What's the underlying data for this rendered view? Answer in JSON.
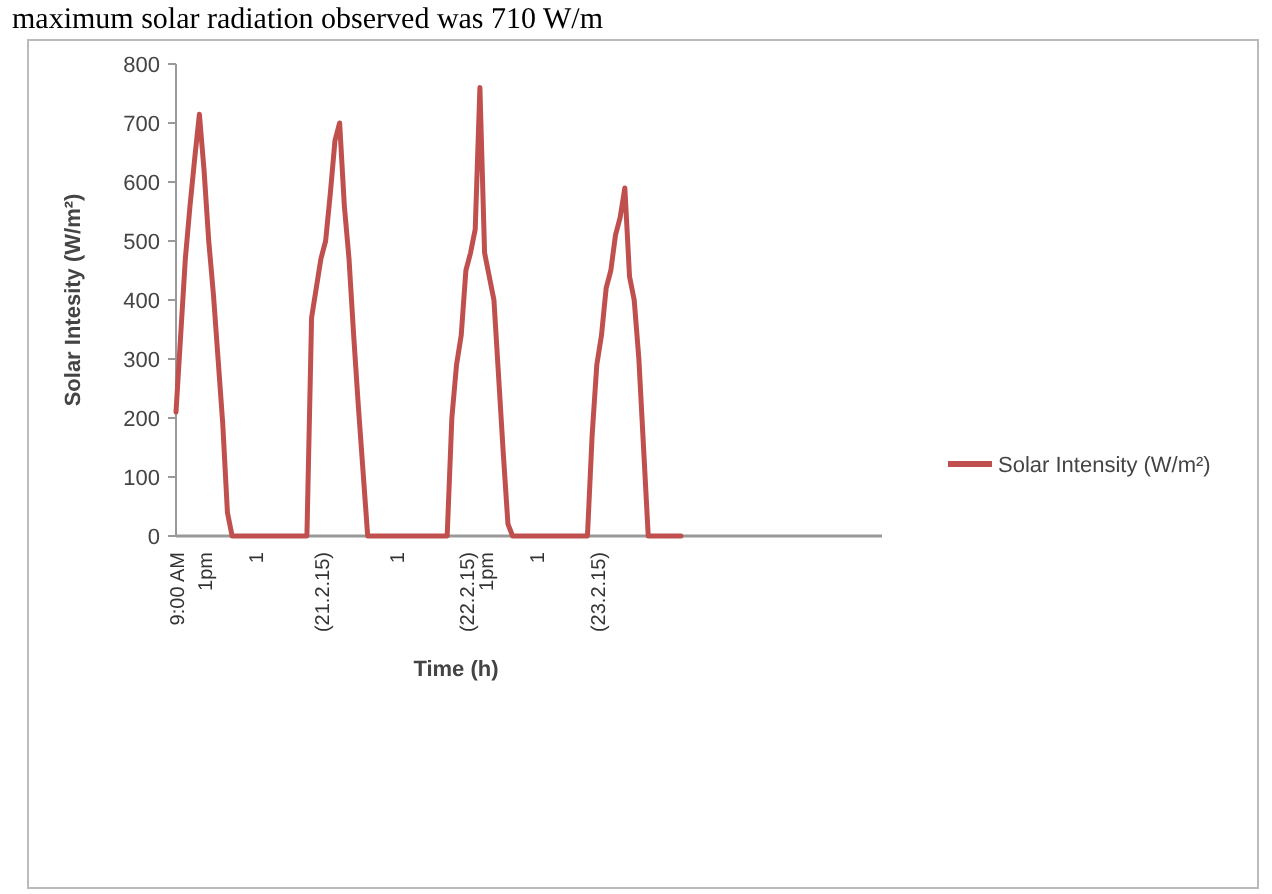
{
  "chart_data": {
    "type": "line",
    "ylabel": "Solar Intesity (W/m²)",
    "xlabel": "Time (h)",
    "annotations": [
      "maximum solar radiation observed was 710 W/m"
    ],
    "categories": [
      "9:00 AM",
      null,
      null,
      null,
      null,
      null,
      "1pm",
      null,
      null,
      null,
      null,
      null,
      null,
      null,
      null,
      null,
      null,
      "1",
      null,
      null,
      null,
      null,
      null,
      null,
      null,
      null,
      null,
      null,
      null,
      null,
      null,
      "(21.2.15)",
      null,
      null,
      null,
      null,
      null,
      null,
      null,
      null,
      null,
      null,
      null,
      null,
      null,
      null,
      null,
      "1",
      null,
      null,
      null,
      null,
      null,
      null,
      null,
      null,
      null,
      null,
      null,
      null,
      null,
      null,
      "(22.2.15)",
      null,
      null,
      null,
      "1pm",
      null,
      null,
      null,
      null,
      null,
      null,
      null,
      null,
      null,
      null,
      "1",
      null,
      null,
      null,
      null,
      null,
      null,
      null,
      null,
      null,
      null,
      null,
      null,
      "(23.2.15)",
      null,
      null,
      null,
      null,
      null,
      null,
      null,
      null,
      null,
      null,
      null,
      null,
      null,
      null,
      null,
      null,
      null,
      null,
      null,
      null,
      null,
      null,
      null,
      null,
      null,
      null,
      null,
      null,
      null,
      null,
      null,
      null,
      null,
      null,
      null,
      null,
      null,
      null,
      null,
      null,
      null,
      null,
      null,
      null,
      null,
      null,
      null,
      null,
      null,
      null,
      null,
      null,
      null,
      null,
      null,
      null,
      null,
      null,
      null,
      null,
      null
    ],
    "series": [
      {
        "name": "Solar Intensity (W/m²)",
        "color": "#c0504d",
        "values": [
          210,
          340,
          470,
          560,
          640,
          715,
          620,
          500,
          410,
          300,
          190,
          40,
          0,
          0,
          0,
          0,
          0,
          0,
          0,
          0,
          0,
          0,
          0,
          0,
          0,
          0,
          0,
          0,
          0,
          370,
          420,
          470,
          500,
          580,
          670,
          700,
          560,
          470,
          340,
          220,
          110,
          0,
          0,
          0,
          0,
          0,
          0,
          0,
          0,
          0,
          0,
          0,
          0,
          0,
          0,
          0,
          0,
          0,
          0,
          200,
          290,
          340,
          450,
          480,
          520,
          760,
          480,
          440,
          400,
          270,
          140,
          20,
          0,
          0,
          0,
          0,
          0,
          0,
          0,
          0,
          0,
          0,
          0,
          0,
          0,
          0,
          0,
          0,
          0,
          170,
          290,
          340,
          420,
          450,
          510,
          540,
          590,
          440,
          400,
          300,
          150,
          0,
          0,
          0,
          0,
          0,
          0,
          0,
          0,
          null,
          null,
          null,
          null,
          null,
          null,
          null,
          null,
          null,
          null,
          null,
          null,
          null,
          null,
          null,
          null,
          null,
          null,
          null,
          null,
          null,
          null,
          null,
          null,
          null,
          null,
          null,
          null,
          null,
          null,
          null,
          null,
          null,
          null,
          null,
          null,
          null,
          null,
          null,
          null,
          null,
          null,
          null
        ]
      }
    ],
    "ylim": [
      0,
      800
    ],
    "yticks": [
      0,
      100,
      200,
      300,
      400,
      500,
      600,
      700,
      800
    ],
    "grid": false,
    "legend": "right",
    "marker": "none",
    "line_style": "solid"
  }
}
